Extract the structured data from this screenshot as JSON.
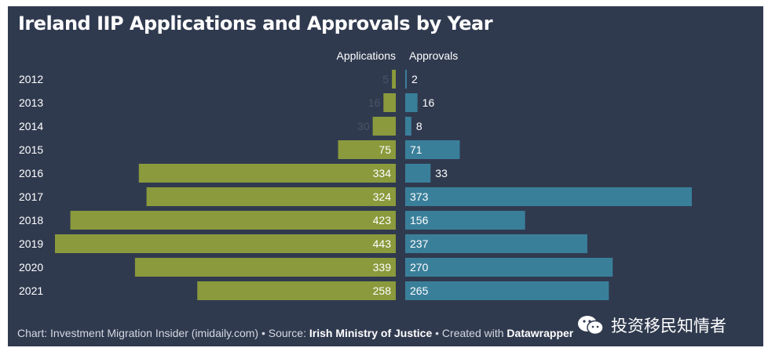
{
  "chart_data": {
    "type": "bar",
    "title": "Ireland IIP Applications and Approvals by Year",
    "categories": [
      "2012",
      "2013",
      "2014",
      "2015",
      "2016",
      "2017",
      "2018",
      "2019",
      "2020",
      "2021"
    ],
    "series": [
      {
        "name": "Applications",
        "values": [
          5,
          16,
          30,
          75,
          334,
          324,
          423,
          443,
          339,
          258
        ],
        "color": "#8a9a3c"
      },
      {
        "name": "Approvals",
        "values": [
          2,
          16,
          8,
          71,
          33,
          373,
          156,
          237,
          270,
          265
        ],
        "color": "#3a7f9a"
      }
    ]
  },
  "footer": {
    "chart_prefix": "Chart: Investment Migration Insider (imidaily.com) • Source: ",
    "source": "Irish Ministry of Justice",
    "created_prefix": " • Created with ",
    "tool": "Datawrapper"
  },
  "watermark": {
    "text": "投资移民知情者",
    "icon": "wechat-icon"
  },
  "colors": {
    "background": "#303a4f",
    "applications": "#8a9a3c",
    "approvals": "#3a7f9a",
    "label_light": "#ffffff",
    "label_muted": "#4c5566"
  }
}
